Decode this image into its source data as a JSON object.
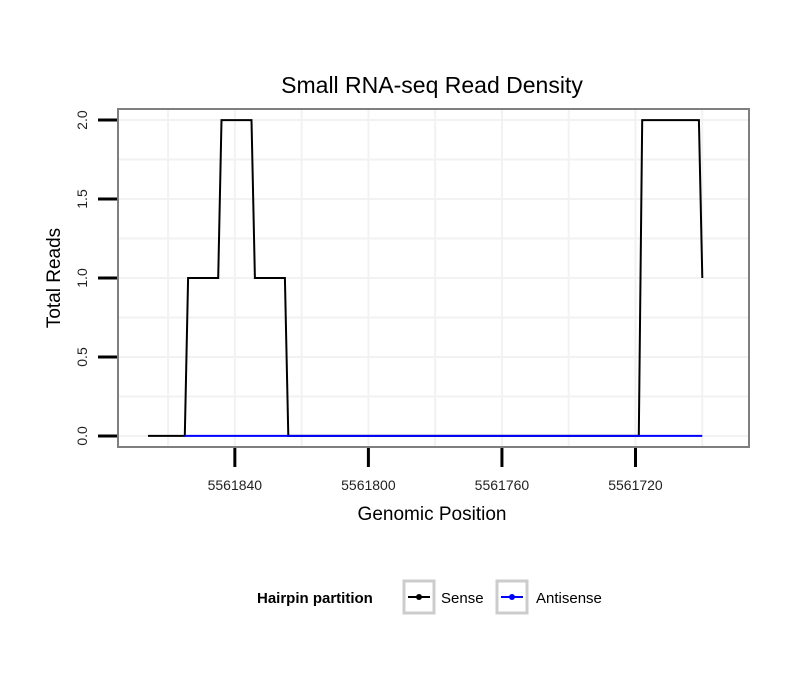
{
  "chart_data": {
    "type": "line",
    "title": "Small RNA-seq Read Density",
    "xlabel": "Genomic Position",
    "ylabel": "Total Reads",
    "x_reversed": true,
    "xlim": [
      5561875,
      5561686
    ],
    "ylim": [
      -0.07,
      2.07
    ],
    "x_ticks": [
      5561840,
      5561800,
      5561760,
      5561720
    ],
    "x_tick_labels": [
      "5561840",
      "5561800",
      "5561760",
      "5561720"
    ],
    "y_ticks": [
      0,
      0.5,
      1,
      1.5,
      2
    ],
    "y_tick_labels": [
      "0.0",
      "0.5",
      "1.0",
      "1.5",
      "2.0"
    ],
    "grid": true,
    "legend": {
      "title": "Hairpin partition",
      "placement": "bottom",
      "entries": [
        "Sense",
        "Antisense"
      ]
    },
    "series": [
      {
        "name": "Sense",
        "color": "#000000",
        "x": [
          5561866,
          5561855,
          5561854,
          5561845,
          5561844,
          5561835,
          5561834,
          5561825,
          5561824,
          5561719,
          5561718,
          5561701,
          5561700
        ],
        "y": [
          0,
          0,
          1,
          1,
          2,
          2,
          1,
          1,
          0,
          0,
          2,
          2,
          1
        ]
      },
      {
        "name": "Antisense",
        "color": "#0000ff",
        "x": [
          5561855,
          5561700
        ],
        "y": [
          0,
          0
        ]
      }
    ]
  }
}
